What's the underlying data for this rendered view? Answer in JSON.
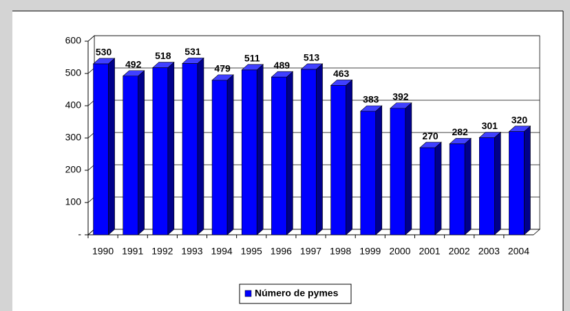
{
  "chart_data": {
    "type": "bar3d",
    "categories": [
      "1990",
      "1991",
      "1992",
      "1993",
      "1994",
      "1995",
      "1996",
      "1997",
      "1998",
      "1999",
      "2000",
      "2001",
      "2002",
      "2003",
      "2004"
    ],
    "series": [
      {
        "name": "Número de pymes",
        "color": "#0000ff",
        "values": [
          530,
          492,
          518,
          531,
          479,
          511,
          489,
          513,
          463,
          383,
          392,
          270,
          282,
          301,
          320
        ]
      }
    ],
    "ylim": [
      0,
      600
    ],
    "yticks": [
      {
        "value": 0,
        "label": "-"
      },
      100,
      200,
      300,
      400,
      500,
      600
    ],
    "grid": true,
    "legend": "bottom"
  }
}
